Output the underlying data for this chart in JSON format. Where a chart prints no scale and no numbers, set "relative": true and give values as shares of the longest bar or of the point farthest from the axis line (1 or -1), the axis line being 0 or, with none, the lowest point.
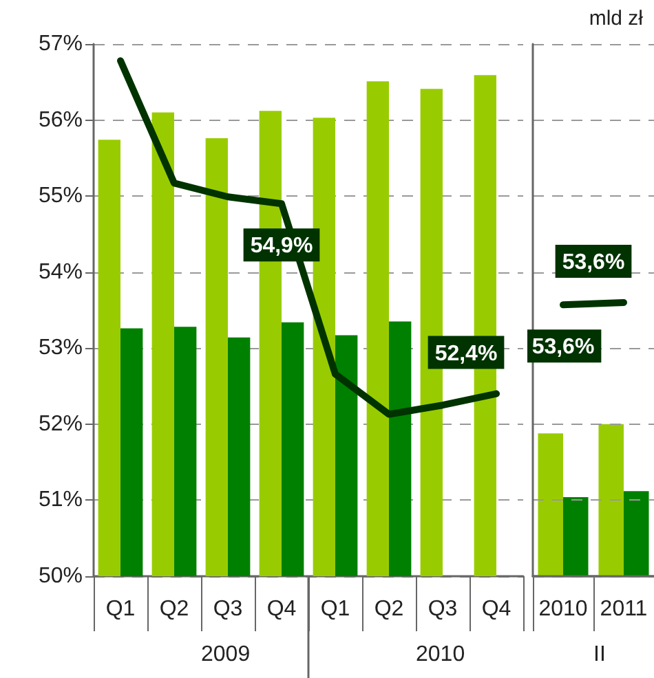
{
  "chart_data": [
    {
      "type": "bar",
      "categories": [
        "Q1",
        "Q2",
        "Q3",
        "Q4",
        "Q1",
        "Q2",
        "Q3",
        "Q4"
      ],
      "series": [
        {
          "color": "#99cc00",
          "values": [
            55.74,
            56.1,
            55.76,
            56.12,
            56.03,
            56.51,
            56.41,
            56.59
          ]
        },
        {
          "color": "#008000",
          "values": [
            53.26,
            53.28,
            53.14,
            53.34,
            53.17,
            53.35,
            null,
            null
          ]
        },
        {
          "type": "line",
          "color": "#003300",
          "values": [
            56.78,
            55.17,
            54.99,
            54.9,
            52.66,
            52.13,
            52.25,
            52.4
          ],
          "value_labels": [
            null,
            null,
            null,
            "54,9%",
            null,
            null,
            null,
            "52,4%"
          ]
        }
      ],
      "annotations": [
        "2009",
        "2010"
      ],
      "ylim": [
        50,
        57
      ],
      "yticks": [
        {
          "value": 50,
          "label": "50%"
        },
        {
          "value": 51,
          "label": "51%"
        },
        {
          "value": 52,
          "label": "52%"
        },
        {
          "value": 53,
          "label": "53%"
        },
        {
          "value": 54,
          "label": "54%"
        },
        {
          "value": 55,
          "label": "55%"
        },
        {
          "value": 56,
          "label": "56%"
        },
        {
          "value": 57,
          "label": "57%"
        }
      ],
      "grid": "y"
    },
    {
      "type": "line",
      "categories": [
        "2010",
        "2011"
      ],
      "series": [
        {
          "color": "#003300",
          "values": [
            53.57,
            53.6
          ],
          "value_labels": [
            "53,6%",
            "53,6%"
          ]
        }
      ],
      "ylim": [
        50,
        57
      ],
      "yticks": [
        50,
        51,
        52,
        53,
        54,
        55,
        56,
        57
      ],
      "tick_labels": false,
      "grid": "y"
    },
    {
      "type": "bar",
      "categories": [
        "2010",
        "2011"
      ],
      "relative": true,
      "title": "mld zł",
      "series": [
        {
          "color": "#99cc00",
          "values": [
            0.94,
            1
          ]
        },
        {
          "color": "#008000",
          "values": [
            0.52,
            0.56
          ]
        }
      ],
      "annotations": [
        "II"
      ]
    }
  ]
}
